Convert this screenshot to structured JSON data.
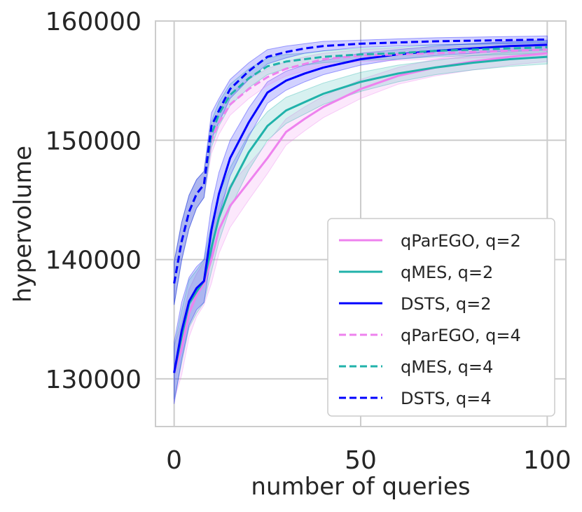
{
  "chart_data": {
    "type": "line",
    "xlabel": "number of queries",
    "ylabel": "hypervolume",
    "xlim": [
      -5,
      105
    ],
    "ylim": [
      126000,
      160000
    ],
    "xticks": [
      {
        "value": 0,
        "label": "0"
      },
      {
        "value": 50,
        "label": "50"
      },
      {
        "value": 100,
        "label": "100"
      }
    ],
    "yticks": [
      {
        "value": 130000,
        "label": "130000"
      },
      {
        "value": 140000,
        "label": "140000"
      },
      {
        "value": 150000,
        "label": "150000"
      },
      {
        "value": 160000,
        "label": "160000"
      }
    ],
    "grid": true,
    "legend_position": "lower-right",
    "series": [
      {
        "name": "qParEGO, q=2",
        "color": "#ee82ee",
        "dash": "solid",
        "x": [
          0,
          2,
          4,
          6,
          8,
          10,
          12,
          15,
          20,
          25,
          30,
          35,
          40,
          50,
          60,
          70,
          80,
          90,
          100
        ],
        "y": [
          130500,
          132500,
          135500,
          137000,
          138000,
          140000,
          142500,
          144500,
          146500,
          148500,
          150700,
          151800,
          152800,
          154300,
          155400,
          156100,
          156600,
          157000,
          157300
        ],
        "band": [
          2200,
          2200,
          2000,
          1800,
          1800,
          2000,
          2000,
          1800,
          1500,
          1300,
          1100,
          1000,
          900,
          800,
          700,
          700,
          700,
          700,
          700
        ]
      },
      {
        "name": "qMES, q=2",
        "color": "#20b2aa",
        "dash": "solid",
        "x": [
          0,
          2,
          4,
          6,
          8,
          10,
          12,
          15,
          20,
          25,
          30,
          35,
          40,
          50,
          60,
          70,
          80,
          90,
          100
        ],
        "y": [
          130500,
          133500,
          136300,
          137300,
          138200,
          141000,
          143500,
          146000,
          149000,
          151200,
          152500,
          153200,
          153900,
          154900,
          155600,
          156100,
          156500,
          156800,
          157000
        ],
        "band": [
          2200,
          2200,
          2000,
          1800,
          1800,
          2000,
          2000,
          1700,
          1500,
          1200,
          1100,
          1000,
          900,
          800,
          700,
          600,
          600,
          600,
          600
        ]
      },
      {
        "name": "DSTS, q=2",
        "color": "#0000ff",
        "dash": "solid",
        "x": [
          0,
          2,
          4,
          6,
          8,
          10,
          12,
          15,
          20,
          25,
          30,
          35,
          40,
          50,
          60,
          70,
          80,
          90,
          100
        ],
        "y": [
          130500,
          134000,
          136500,
          137600,
          138200,
          142500,
          145500,
          148500,
          151500,
          154000,
          155000,
          155600,
          156100,
          156800,
          157200,
          157500,
          157700,
          157900,
          158000
        ],
        "band": [
          2600,
          2400,
          2000,
          1800,
          1800,
          2000,
          1800,
          1500,
          1200,
          900,
          800,
          700,
          600,
          500,
          400,
          400,
          400,
          400,
          400
        ]
      },
      {
        "name": "qParEGO, q=4",
        "color": "#ee82ee",
        "dash": "dashed",
        "x": [
          0,
          2,
          4,
          6,
          8,
          10,
          12,
          15,
          20,
          25,
          30,
          35,
          40,
          50,
          60,
          70,
          80,
          90,
          100
        ],
        "y": [
          138000,
          141500,
          144000,
          145500,
          146300,
          150000,
          151500,
          153000,
          154300,
          155300,
          156000,
          156400,
          156800,
          157100,
          157200,
          157300,
          157400,
          157500,
          157600
        ],
        "band": [
          1800,
          1600,
          1400,
          1200,
          1100,
          1100,
          1000,
          900,
          800,
          700,
          600,
          600,
          500,
          500,
          500,
          500,
          500,
          500,
          500
        ]
      },
      {
        "name": "qMES, q=4",
        "color": "#20b2aa",
        "dash": "dashed",
        "x": [
          0,
          2,
          4,
          6,
          8,
          10,
          12,
          15,
          20,
          25,
          30,
          35,
          40,
          50,
          60,
          70,
          80,
          90,
          100
        ],
        "y": [
          138000,
          141500,
          144000,
          145500,
          146300,
          150500,
          152200,
          153800,
          155200,
          156200,
          156600,
          156800,
          157000,
          157200,
          157300,
          157500,
          157600,
          157700,
          157800
        ],
        "band": [
          1800,
          1600,
          1400,
          1200,
          1100,
          1100,
          1000,
          900,
          800,
          700,
          600,
          500,
          500,
          500,
          500,
          500,
          500,
          500,
          500
        ]
      },
      {
        "name": "DSTS, q=4",
        "color": "#0000ff",
        "dash": "dashed",
        "x": [
          0,
          2,
          4,
          6,
          8,
          10,
          12,
          15,
          20,
          25,
          30,
          35,
          40,
          50,
          60,
          70,
          80,
          90,
          100
        ],
        "y": [
          138000,
          141500,
          144000,
          145500,
          146300,
          151200,
          152500,
          154300,
          155800,
          157000,
          157400,
          157700,
          157900,
          158100,
          158200,
          158300,
          158350,
          158400,
          158450
        ],
        "band": [
          1800,
          1600,
          1400,
          1200,
          1100,
          1100,
          1000,
          800,
          700,
          600,
          500,
          400,
          400,
          300,
          300,
          300,
          300,
          300,
          300
        ]
      }
    ]
  }
}
